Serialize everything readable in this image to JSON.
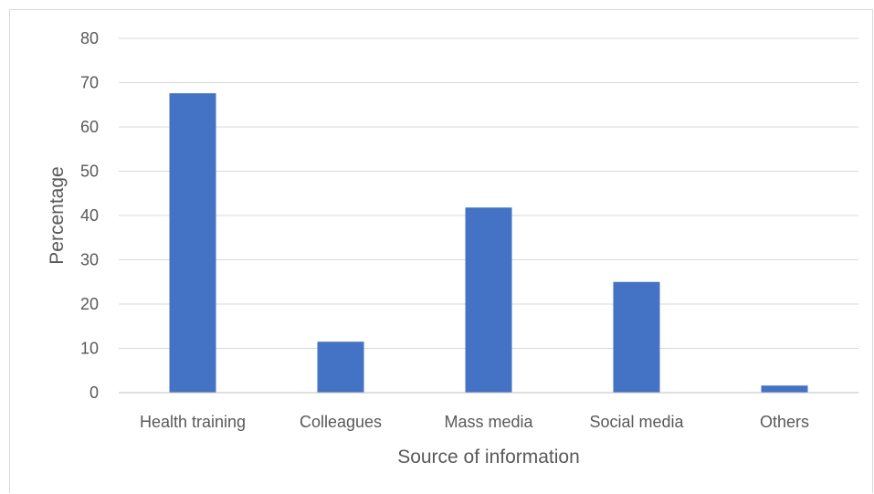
{
  "chart_data": {
    "type": "bar",
    "title": "",
    "xlabel": "Source of information",
    "ylabel": "Percentage",
    "categories": [
      "Health training",
      "Colleagues",
      "Mass media",
      "Social media",
      "Others"
    ],
    "values": [
      67.6,
      11.5,
      41.8,
      25.0,
      1.6
    ],
    "ylim": [
      0,
      80
    ],
    "yticks": [
      "0",
      "10",
      "20",
      "30",
      "40",
      "50",
      "60",
      "70",
      "80"
    ],
    "grid": true,
    "legend": "none",
    "bar_color": "#4472C4"
  }
}
